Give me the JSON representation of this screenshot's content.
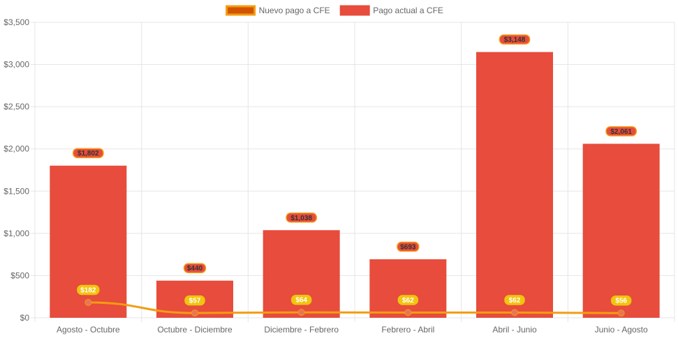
{
  "chart_data": {
    "type": "bar",
    "categories": [
      "Agosto - Octubre",
      "Octubre - Diciembre",
      "Diciembre - Febrero",
      "Febrero - Abril",
      "Abril - Junio",
      "Junio - Agosto"
    ],
    "series": [
      {
        "name": "Nuevo pago a CFE",
        "type": "line",
        "values": [
          182,
          57,
          64,
          62,
          62,
          56
        ],
        "labels": [
          "$182",
          "$57",
          "$64",
          "$62",
          "$62",
          "$56"
        ],
        "color": "#F39C12",
        "legend_fill": "#D35400"
      },
      {
        "name": "Pago actual a CFE",
        "type": "bar",
        "values": [
          1802,
          440,
          1038,
          693,
          3148,
          2061
        ],
        "labels": [
          "$1,802",
          "$440",
          "$1,038",
          "$693",
          "$3,148",
          "$2,061"
        ],
        "color": "#E74C3C"
      }
    ],
    "yticks": [
      "$0",
      "$500",
      "$1,000",
      "$1,500",
      "$2,000",
      "$2,500",
      "$3,000",
      "$3,500"
    ],
    "ylim": [
      0,
      3500
    ],
    "grid": true,
    "legend_position": "top"
  },
  "colors": {
    "bar": "#E74C3C",
    "line": "#F39C12",
    "line_point": "#E8745A",
    "bar_label_bg": "#E74C3C",
    "bar_label_border": "#F39C12",
    "line_label_bg": "#F1C40F",
    "grid": "#E5E5E5"
  }
}
